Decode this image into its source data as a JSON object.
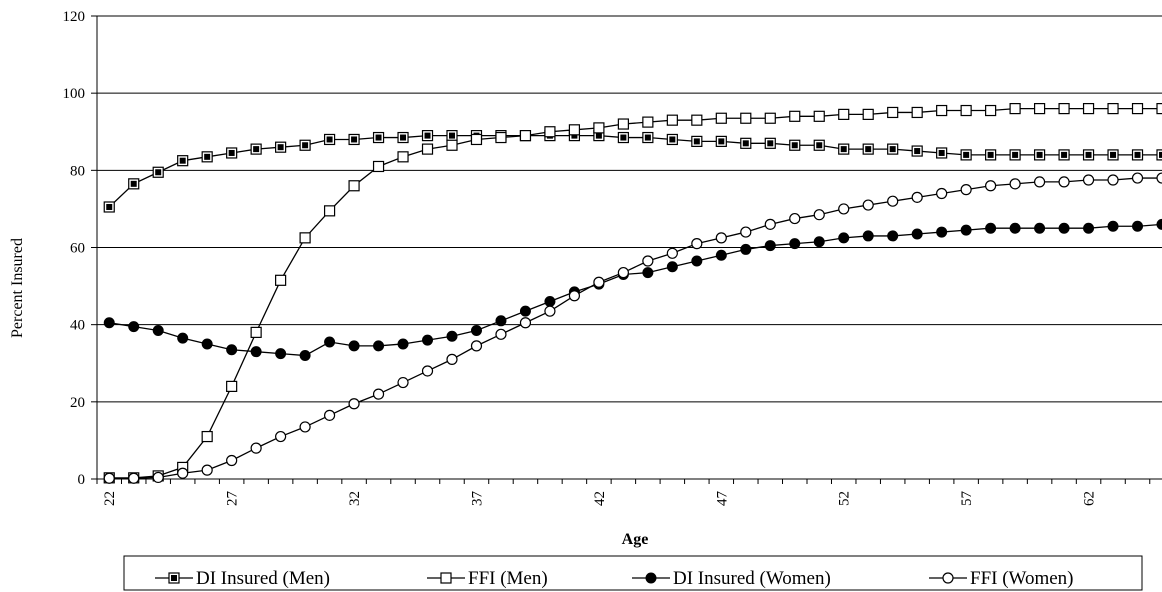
{
  "chart_data": {
    "type": "line",
    "xlabel": "Age",
    "ylabel": "Percent Insured",
    "ylim": [
      0,
      120
    ],
    "yticks": [
      0,
      20,
      40,
      60,
      80,
      100,
      120
    ],
    "xlim": [
      21.5,
      65
    ],
    "xticks": [
      22,
      27,
      32,
      37,
      42,
      47,
      52,
      57,
      62
    ],
    "grid": "horizontal",
    "legend_position": "bottom",
    "x": [
      22,
      23,
      24,
      25,
      26,
      27,
      28,
      29,
      30,
      31,
      32,
      33,
      34,
      35,
      36,
      37,
      38,
      39,
      40,
      41,
      42,
      43,
      44,
      45,
      46,
      47,
      48,
      49,
      50,
      51,
      52,
      53,
      54,
      55,
      56,
      57,
      58,
      59,
      60,
      61,
      62,
      63,
      64,
      65
    ],
    "series": [
      {
        "name": "DI Insured (Men)",
        "marker": "square-filled",
        "values": [
          70.5,
          76.5,
          79.5,
          82.5,
          83.5,
          84.5,
          85.5,
          86,
          86.5,
          88,
          88,
          88.5,
          88.5,
          89,
          89,
          89,
          89,
          89,
          89,
          89,
          89,
          88.5,
          88.5,
          88,
          87.5,
          87.5,
          87,
          87,
          86.5,
          86.5,
          85.5,
          85.5,
          85.5,
          85,
          84.5,
          84,
          84,
          84,
          84,
          84,
          84,
          84,
          84,
          84
        ]
      },
      {
        "name": "FFI (Men)",
        "marker": "square-open",
        "values": [
          0.3,
          0.3,
          0.8,
          3,
          11,
          24,
          38,
          51.5,
          62.5,
          69.5,
          76,
          81,
          83.5,
          85.5,
          86.5,
          88,
          88.5,
          89,
          90,
          90.5,
          91,
          92,
          92.5,
          93,
          93,
          93.5,
          93.5,
          93.5,
          94,
          94,
          94.5,
          94.5,
          95,
          95,
          95.5,
          95.5,
          95.5,
          96,
          96,
          96,
          96,
          96,
          96,
          96
        ]
      },
      {
        "name": "DI Insured (Women)",
        "marker": "circle-filled",
        "values": [
          40.5,
          39.5,
          38.5,
          36.5,
          35,
          33.5,
          33,
          32.5,
          32,
          35.5,
          34.5,
          34.5,
          35,
          36,
          37,
          38.5,
          41,
          43.5,
          46,
          48.5,
          50.5,
          53,
          53.5,
          55,
          56.5,
          58,
          59.5,
          60.5,
          61,
          61.5,
          62.5,
          63,
          63,
          63.5,
          64,
          64.5,
          65,
          65,
          65,
          65,
          65,
          65.5,
          65.5,
          66
        ]
      },
      {
        "name": "FFI (Women)",
        "marker": "circle-open",
        "values": [
          0.2,
          0.2,
          0.4,
          1.5,
          2.3,
          4.8,
          8,
          11,
          13.5,
          16.5,
          19.5,
          22,
          25,
          28,
          31,
          34.5,
          37.5,
          40.5,
          43.5,
          47.5,
          51,
          53.5,
          56.5,
          58.5,
          61,
          62.5,
          64,
          66,
          67.5,
          68.5,
          70,
          71,
          72,
          73,
          74,
          75,
          76,
          76.5,
          77,
          77,
          77.5,
          77.5,
          78,
          78
        ]
      }
    ]
  }
}
